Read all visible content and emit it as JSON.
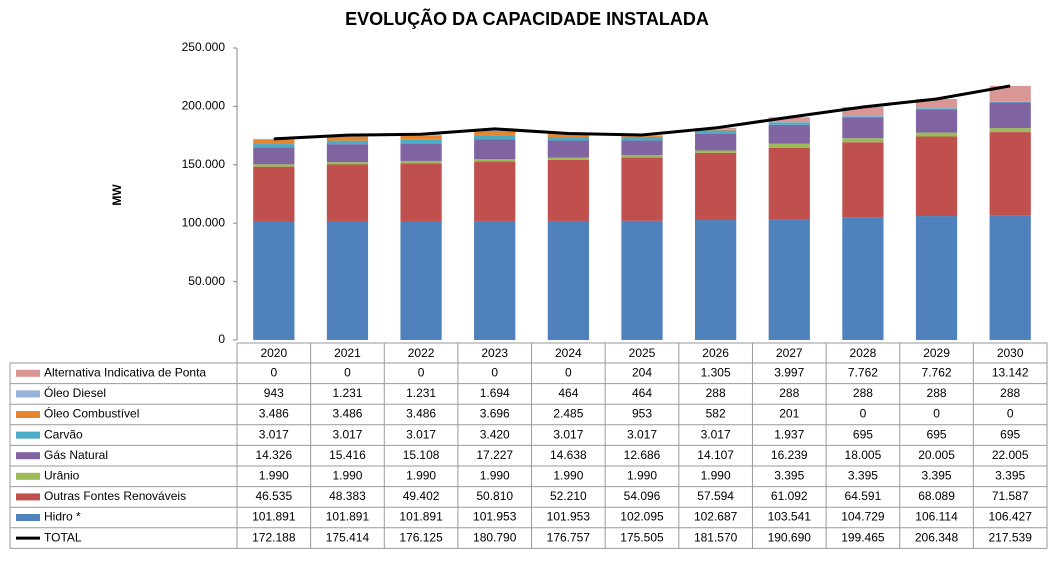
{
  "chart_data": {
    "type": "bar",
    "stacked": true,
    "title": "EVOLUÇÃO DA CAPACIDADE INSTALADA",
    "y_label": "MW",
    "categories": [
      "2020",
      "2021",
      "2022",
      "2023",
      "2024",
      "2025",
      "2026",
      "2027",
      "2028",
      "2029",
      "2030"
    ],
    "ylim": [
      0,
      250000
    ],
    "yticks": [
      0,
      {
        "value": 50000,
        "label": "50.000"
      },
      {
        "value": 100000,
        "label": "100.000"
      },
      {
        "value": 150000,
        "label": "150.000"
      },
      {
        "value": 200000,
        "label": "200.000"
      },
      {
        "value": 250000,
        "label": "250.000"
      }
    ],
    "series": [
      {
        "name": "Alternativa Indicativa de Ponta",
        "color": "#d99694",
        "values": [
          0,
          0,
          0,
          0,
          0,
          204,
          1305,
          3997,
          7762,
          7762,
          13142
        ],
        "value_labels": [
          "0",
          "0",
          "0",
          "0",
          "0",
          "204",
          "1.305",
          "3.997",
          "7.762",
          "7.762",
          "13.142"
        ]
      },
      {
        "name": "Óleo Diesel",
        "color": "#95b3d7",
        "values": [
          943,
          1231,
          1231,
          1694,
          464,
          464,
          288,
          288,
          288,
          288,
          288
        ],
        "value_labels": [
          "943",
          "1.231",
          "1.231",
          "1.694",
          "464",
          "464",
          "288",
          "288",
          "288",
          "288",
          "288"
        ]
      },
      {
        "name": "Óleo Combustível",
        "color": "#e6852e",
        "values": [
          3486,
          3486,
          3486,
          3696,
          2485,
          953,
          582,
          201,
          0,
          0,
          0
        ],
        "value_labels": [
          "3.486",
          "3.486",
          "3.486",
          "3.696",
          "2.485",
          "953",
          "582",
          "201",
          "0",
          "0",
          "0"
        ]
      },
      {
        "name": "Carvão",
        "color": "#4bacc6",
        "values": [
          3017,
          3017,
          3017,
          3420,
          3017,
          3017,
          3017,
          1937,
          695,
          695,
          695
        ],
        "value_labels": [
          "3.017",
          "3.017",
          "3.017",
          "3.420",
          "3.017",
          "3.017",
          "3.017",
          "1.937",
          "695",
          "695",
          "695"
        ]
      },
      {
        "name": "Gás Natural",
        "color": "#8064a2",
        "values": [
          14326,
          15416,
          15108,
          17227,
          14638,
          12686,
          14107,
          16239,
          18005,
          20005,
          22005
        ],
        "value_labels": [
          "14.326",
          "15.416",
          "15.108",
          "17.227",
          "14.638",
          "12.686",
          "14.107",
          "16.239",
          "18.005",
          "20.005",
          "22.005"
        ]
      },
      {
        "name": "Urânio",
        "color": "#9bbb59",
        "values": [
          1990,
          1990,
          1990,
          1990,
          1990,
          1990,
          1990,
          3395,
          3395,
          3395,
          3395
        ],
        "value_labels": [
          "1.990",
          "1.990",
          "1.990",
          "1.990",
          "1.990",
          "1.990",
          "1.990",
          "3.395",
          "3.395",
          "3.395",
          "3.395"
        ]
      },
      {
        "name": "Outras Fontes Renováveis",
        "color": "#c0504d",
        "values": [
          46535,
          48383,
          49402,
          50810,
          52210,
          54096,
          57594,
          61092,
          64591,
          68089,
          71587
        ],
        "value_labels": [
          "46.535",
          "48.383",
          "49.402",
          "50.810",
          "52.210",
          "54.096",
          "57.594",
          "61.092",
          "64.591",
          "68.089",
          "71.587"
        ]
      },
      {
        "name": "Hidro *",
        "color": "#4f81bd",
        "values": [
          101891,
          101891,
          101891,
          101953,
          101953,
          102095,
          102687,
          103541,
          104729,
          106114,
          106427
        ],
        "value_labels": [
          "101.891",
          "101.891",
          "101.891",
          "101.953",
          "101.953",
          "102.095",
          "102.687",
          "103.541",
          "104.729",
          "106.114",
          "106.427"
        ]
      }
    ],
    "total": {
      "name": "TOTAL",
      "color": "#000000",
      "values": [
        172188,
        175414,
        176125,
        180790,
        176757,
        175505,
        181570,
        190690,
        199465,
        206348,
        217539
      ],
      "value_labels": [
        "172.188",
        "175.414",
        "176.125",
        "180.790",
        "176.757",
        "175.505",
        "181.570",
        "190.690",
        "199.465",
        "206.348",
        "217.539"
      ]
    }
  }
}
